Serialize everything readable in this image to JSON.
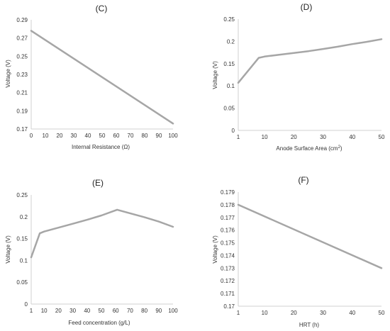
{
  "chart_data": [
    {
      "type": "line",
      "title": "(C)",
      "xlabel": "Internal Resistance (Ω)",
      "ylabel": "Voltage (V)",
      "x_ticks": [
        "0",
        "10",
        "20",
        "30",
        "40",
        "50",
        "60",
        "70",
        "80",
        "90",
        "100"
      ],
      "y_ticks": [
        "0.17",
        "0.19",
        "0.21",
        "0.23",
        "0.25",
        "0.27",
        "0.29"
      ],
      "xlim": [
        0,
        100
      ],
      "ylim": [
        0.17,
        0.29
      ],
      "grid": false,
      "series": [
        {
          "x": [
            0,
            100
          ],
          "y": [
            0.278,
            0.176
          ]
        }
      ]
    },
    {
      "type": "line",
      "title": "(D)",
      "xlabel": "Anode Surface Area (cm²)",
      "ylabel": "Voltage (V)",
      "x_ticks": [
        "1",
        "10",
        "20",
        "30",
        "40",
        "50"
      ],
      "y_ticks": [
        "0",
        "0.05",
        "0.1",
        "0.15",
        "0.2",
        "0.25"
      ],
      "xlim": [
        1,
        50
      ],
      "ylim": [
        0,
        0.25
      ],
      "grid": false,
      "series": [
        {
          "x": [
            1,
            8,
            10,
            15,
            20,
            25,
            30,
            35,
            40,
            45,
            50
          ],
          "y": [
            0.107,
            0.163,
            0.166,
            0.17,
            0.174,
            0.178,
            0.183,
            0.188,
            0.194,
            0.199,
            0.205
          ]
        }
      ]
    },
    {
      "type": "line",
      "title": "(E)",
      "xlabel": "Feed concentration (g/L)",
      "ylabel": "Voltage (V)",
      "x_ticks": [
        "1",
        "10",
        "20",
        "30",
        "40",
        "50",
        "60",
        "70",
        "80",
        "90",
        "100"
      ],
      "y_ticks": [
        "0",
        "0.05",
        "0.1",
        "0.15",
        "0.2",
        "0.25"
      ],
      "xlim": [
        1,
        100
      ],
      "ylim": [
        0,
        0.25
      ],
      "grid": false,
      "series": [
        {
          "x": [
            1,
            7,
            10,
            20,
            30,
            40,
            50,
            61,
            70,
            80,
            90,
            100
          ],
          "y": [
            0.107,
            0.162,
            0.166,
            0.175,
            0.184,
            0.193,
            0.203,
            0.216,
            0.208,
            0.199,
            0.189,
            0.177
          ]
        }
      ]
    },
    {
      "type": "line",
      "title": "(F)",
      "xlabel": "HRT (h)",
      "ylabel": "Voltage (V)",
      "x_ticks": [
        "1",
        "10",
        "20",
        "30",
        "40",
        "50"
      ],
      "y_ticks": [
        "0.17",
        "0.171",
        "0.172",
        "0.173",
        "0.174",
        "0.175",
        "0.176",
        "0.177",
        "0.178",
        "0.179"
      ],
      "xlim": [
        1,
        50
      ],
      "ylim": [
        0.17,
        0.179
      ],
      "grid": false,
      "series": [
        {
          "x": [
            1,
            50
          ],
          "y": [
            0.178,
            0.173
          ]
        }
      ]
    }
  ]
}
